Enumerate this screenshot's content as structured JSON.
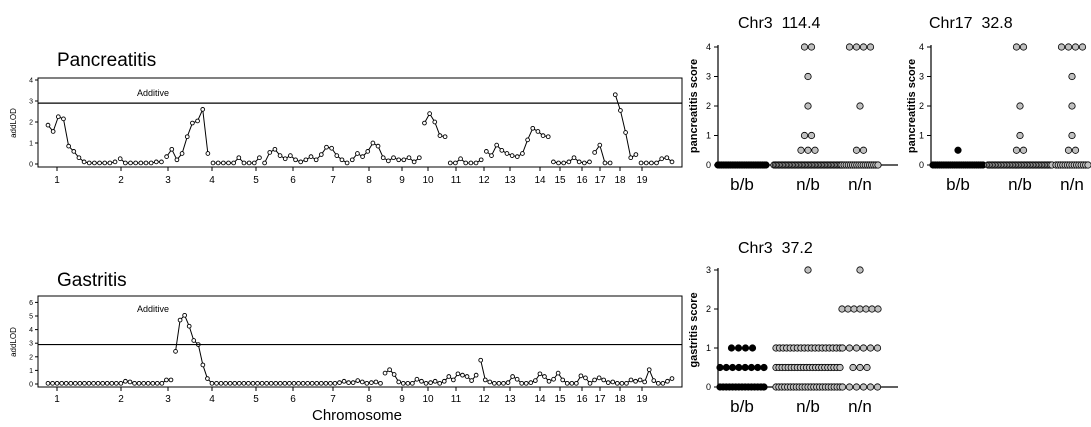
{
  "chart_data": [
    {
      "type": "line",
      "title": "Pancreatitis",
      "ylabel": "addLOD",
      "xlabel": "",
      "ylim": [
        0,
        4
      ],
      "yticks": [
        "0",
        "1",
        "2",
        "3",
        "4"
      ],
      "threshold": {
        "label": "Additive",
        "value": 2.9
      },
      "chromosomes": [
        "1",
        "2",
        "3",
        "4",
        "5",
        "6",
        "7",
        "8",
        "9",
        "10",
        "11",
        "12",
        "13",
        "14",
        "15",
        "16",
        "17",
        "18",
        "19"
      ],
      "segments": [
        [
          1.85,
          1.55,
          2.25,
          2.15,
          0.85,
          0.6,
          0.3,
          0.1,
          0.05,
          0.05,
          0.05,
          0.05,
          0.05,
          0.1
        ],
        [
          0.25,
          0.05,
          0.05,
          0.05,
          0.05,
          0.05,
          0.05,
          0.1,
          0.1
        ],
        [
          0.35,
          0.7,
          0.2,
          0.5,
          1.3,
          1.95,
          2.05,
          2.6,
          0.5
        ],
        [
          0.05,
          0.05,
          0.05,
          0.05,
          0.05,
          0.3,
          0.05,
          0.05,
          0.05,
          0.3
        ],
        [
          0.05,
          0.55,
          0.7,
          0.4,
          0.25,
          0.4,
          0.2,
          0.1,
          0.2,
          0.35,
          0.2,
          0.45,
          0.8,
          0.75,
          0.4,
          0.2,
          0.05
        ],
        [
          0.2,
          0.5,
          0.35,
          0.6,
          1.0,
          0.85,
          0.3,
          0.15,
          0.3,
          0.2,
          0.2,
          0.3,
          0.1,
          0.3
        ],
        [
          1.95,
          2.4,
          2.0,
          1.35,
          1.3
        ],
        [
          0.05,
          0.05,
          0.25,
          0.05,
          0.05,
          0.05,
          0.2
        ],
        [
          0.6,
          0.4,
          0.9,
          0.65,
          0.5,
          0.4,
          0.35,
          0.5,
          1.15,
          1.7,
          1.55,
          1.35,
          1.3
        ],
        [
          0.1,
          0.05,
          0.05,
          0.1,
          0.3,
          0.1,
          0.05,
          0.1
        ],
        [
          0.55,
          0.9,
          0.05,
          0.05
        ],
        [
          3.3,
          2.55,
          1.5,
          0.3,
          0.45
        ],
        [
          0.05,
          0.05,
          0.05,
          0.05,
          0.25,
          0.3,
          0.1
        ]
      ]
    },
    {
      "type": "line",
      "title": "Gastritis",
      "ylabel": "addLOD",
      "xlabel": "Chromosome",
      "ylim": [
        0,
        6
      ],
      "yticks": [
        "0",
        "1",
        "2",
        "3",
        "4",
        "5",
        "6"
      ],
      "threshold": {
        "label": "Additive",
        "value": 2.9
      },
      "chromosomes": [
        "1",
        "2",
        "3",
        "4",
        "5",
        "6",
        "7",
        "8",
        "9",
        "10",
        "11",
        "12",
        "13",
        "14",
        "15",
        "16",
        "17",
        "18",
        "19"
      ],
      "segments": [
        [
          0.05,
          0.05,
          0.05,
          0.05,
          0.05,
          0.05,
          0.05,
          0.05,
          0.05,
          0.05,
          0.05,
          0.05,
          0.05,
          0.05,
          0.05,
          0.05,
          0.05,
          0.2,
          0.15,
          0.05,
          0.05,
          0.05,
          0.05,
          0.05,
          0.05,
          0.05,
          0.3,
          0.3
        ],
        [
          2.4,
          4.7,
          5.05,
          4.25,
          3.2,
          2.9,
          1.4,
          0.4,
          0.05,
          0.05,
          0.05,
          0.05,
          0.05,
          0.05,
          0.05,
          0.05,
          0.05,
          0.05,
          0.05,
          0.05,
          0.05,
          0.05,
          0.05,
          0.05,
          0.05,
          0.05,
          0.05,
          0.05,
          0.05,
          0.05,
          0.05,
          0.05,
          0.05,
          0.05,
          0.05,
          0.05,
          0.1,
          0.2,
          0.1,
          0.1,
          0.25,
          0.15,
          0.05,
          0.1,
          0.15,
          0.05
        ],
        [
          0.8,
          1.05,
          0.7,
          0.15,
          0.05,
          0.05,
          0.05,
          0.35,
          0.2,
          0.05,
          0.1,
          0.2,
          0.05,
          0.2,
          0.55,
          0.3,
          0.75,
          0.65,
          0.55,
          0.25,
          0.65
        ],
        [
          1.75,
          0.3,
          0.15,
          0.05,
          0.05,
          0.05,
          0.1,
          0.55,
          0.35,
          0.05,
          0.05,
          0.1,
          0.25,
          0.75,
          0.55,
          0.2,
          0.35,
          0.8,
          0.3,
          0.05,
          0.05,
          0.05,
          0.6,
          0.45,
          0.05,
          0.3,
          0.45,
          0.3,
          0.1,
          0.15,
          0.05,
          0.05,
          0.05,
          0.3,
          0.2,
          0.3,
          0.15,
          1.05,
          0.25,
          0.05,
          0.05,
          0.2,
          0.4
        ]
      ]
    },
    {
      "type": "scatter",
      "title": "Chr3  114.4",
      "ylabel": "pancreatitis score",
      "ylim": [
        0,
        4
      ],
      "yticks": [
        "0",
        "1",
        "2",
        "3",
        "4"
      ],
      "categories": [
        "b/b",
        "n/b",
        "n/n"
      ],
      "groups": [
        {
          "genotype": "b/b",
          "color": "#000000",
          "values": [
            0,
            0,
            0,
            0,
            0,
            0,
            0,
            0,
            0,
            0,
            0,
            0,
            0,
            0,
            0,
            0,
            0,
            0,
            0,
            0,
            0,
            0,
            0,
            0,
            0,
            0,
            0,
            0
          ]
        },
        {
          "genotype": "n/b",
          "color": "#c0c0c0",
          "values": [
            0,
            0,
            0,
            0,
            0,
            0,
            0,
            0,
            0,
            0,
            0,
            0,
            0,
            0,
            0,
            0,
            0,
            0,
            0,
            0,
            0,
            0,
            0,
            0,
            0,
            0,
            0,
            0,
            0,
            0,
            0,
            0,
            0,
            0,
            0,
            0,
            0,
            0,
            0,
            0,
            0,
            0,
            0,
            0,
            0,
            0,
            0,
            0,
            0.5,
            0.5,
            0.5,
            1,
            1,
            2,
            3,
            4,
            4
          ]
        },
        {
          "genotype": "n/n",
          "color": "#c0c0c0",
          "values": [
            0,
            0,
            0,
            0,
            0,
            0,
            0,
            0,
            0,
            0,
            0,
            0,
            0,
            0,
            0,
            0,
            0,
            0,
            0.5,
            0.5,
            2,
            4,
            4,
            4,
            4
          ]
        }
      ]
    },
    {
      "type": "scatter",
      "title": "Chr17  32.8",
      "ylabel": "pancreatitis score",
      "ylim": [
        0,
        4
      ],
      "yticks": [
        "0",
        "1",
        "2",
        "3",
        "4"
      ],
      "categories": [
        "b/b",
        "n/b",
        "n/n"
      ],
      "groups": [
        {
          "genotype": "b/b",
          "color": "#000000",
          "values": [
            0,
            0,
            0,
            0,
            0,
            0,
            0,
            0,
            0,
            0,
            0,
            0,
            0,
            0,
            0,
            0,
            0,
            0,
            0,
            0,
            0,
            0,
            0,
            0,
            0.5
          ]
        },
        {
          "genotype": "n/b",
          "color": "#c0c0c0",
          "values": [
            0,
            0,
            0,
            0,
            0,
            0,
            0,
            0,
            0,
            0,
            0,
            0,
            0,
            0,
            0,
            0,
            0,
            0,
            0,
            0,
            0,
            0,
            0,
            0,
            0,
            0,
            0,
            0,
            0,
            0,
            0,
            0,
            0,
            0,
            0,
            0,
            0,
            0,
            0,
            0,
            0,
            0,
            0,
            0.5,
            0.5,
            1,
            2,
            4,
            4
          ]
        },
        {
          "genotype": "n/n",
          "color": "#c0c0c0",
          "values": [
            0,
            0,
            0,
            0,
            0,
            0,
            0,
            0,
            0,
            0,
            0,
            0,
            0,
            0,
            0,
            0.5,
            0.5,
            1,
            2,
            3,
            4,
            4,
            4,
            4
          ]
        }
      ]
    },
    {
      "type": "scatter",
      "title": "Chr3  37.2",
      "ylabel": "gastritis score",
      "ylim": [
        0,
        3
      ],
      "yticks": [
        "0",
        "1",
        "2",
        "3"
      ],
      "categories": [
        "b/b",
        "n/b",
        "n/n"
      ],
      "groups": [
        {
          "genotype": "b/b",
          "color": "#000000",
          "values": [
            0,
            0,
            0,
            0,
            0,
            0,
            0,
            0,
            0,
            0,
            0,
            0,
            0,
            0,
            0,
            0.5,
            0.5,
            0.5,
            0.5,
            0.5,
            0.5,
            0.5,
            0.5,
            1,
            1,
            1,
            1
          ]
        },
        {
          "genotype": "n/b",
          "color": "#c0c0c0",
          "values": [
            0,
            0,
            0,
            0,
            0,
            0,
            0,
            0,
            0,
            0,
            0,
            0,
            0,
            0,
            0,
            0,
            0,
            0,
            0,
            0,
            0,
            0,
            0,
            0.5,
            0.5,
            0.5,
            0.5,
            0.5,
            0.5,
            0.5,
            0.5,
            0.5,
            0.5,
            0.5,
            0.5,
            0.5,
            0.5,
            0.5,
            0.5,
            0.5,
            0.5,
            0.5,
            0.5,
            0.5,
            0.5,
            1,
            1,
            1,
            1,
            1,
            1,
            1,
            1,
            1,
            1,
            1,
            1,
            1,
            1,
            1,
            1,
            1,
            1,
            1,
            3
          ]
        },
        {
          "genotype": "n/n",
          "color": "#c0c0c0",
          "values": [
            0,
            0,
            0,
            0,
            0,
            0,
            0.5,
            0.5,
            0.5,
            1,
            1,
            1,
            1,
            1,
            1,
            2,
            2,
            2,
            2,
            2,
            2,
            2,
            3
          ]
        }
      ]
    }
  ]
}
